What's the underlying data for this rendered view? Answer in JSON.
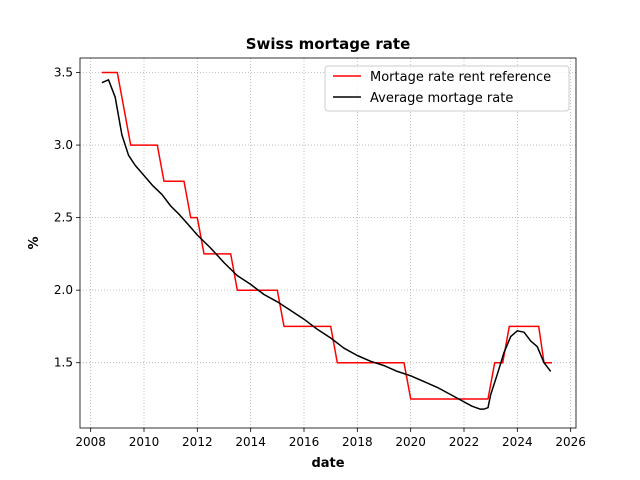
{
  "chart_data": {
    "type": "line",
    "title": "Swiss mortage rate",
    "xlabel": "date",
    "ylabel": "%",
    "xlim": [
      2007.6,
      2026.2
    ],
    "ylim": [
      1.05,
      3.6
    ],
    "x_ticks": [
      2008,
      2010,
      2012,
      2014,
      2016,
      2018,
      2020,
      2022,
      2024,
      2026
    ],
    "x_tick_labels": [
      "2008",
      "2010",
      "2012",
      "2014",
      "2016",
      "2018",
      "2020",
      "2022",
      "2024",
      "2026"
    ],
    "y_ticks": [
      1.5,
      2.0,
      2.5,
      3.0,
      3.5
    ],
    "y_tick_labels": [
      "1.5",
      "2.0",
      "2.5",
      "3.0",
      "3.5"
    ],
    "grid": true,
    "legend_position": "top-right",
    "series": [
      {
        "name": "Mortage rate rent reference",
        "color": "#ff0000",
        "x": [
          2008.42,
          2009.0,
          2009.5,
          2010.5,
          2010.75,
          2011.5,
          2011.75,
          2012.0,
          2012.25,
          2013.25,
          2013.5,
          2015.0,
          2015.25,
          2017.0,
          2017.25,
          2019.75,
          2020.0,
          2022.9,
          2023.15,
          2023.45,
          2023.7,
          2024.8,
          2025.0,
          2025.3
        ],
        "y": [
          3.5,
          3.5,
          3.0,
          3.0,
          2.75,
          2.75,
          2.5,
          2.5,
          2.25,
          2.25,
          2.0,
          2.0,
          1.75,
          1.75,
          1.5,
          1.5,
          1.25,
          1.25,
          1.5,
          1.5,
          1.75,
          1.75,
          1.5,
          1.5
        ]
      },
      {
        "name": "Average mortage rate",
        "color": "#000000",
        "x": [
          2008.42,
          2008.67,
          2008.92,
          2009.17,
          2009.42,
          2009.67,
          2010.0,
          2010.33,
          2010.67,
          2011.0,
          2011.33,
          2011.67,
          2012.0,
          2012.5,
          2013.0,
          2013.5,
          2014.0,
          2014.5,
          2015.0,
          2015.5,
          2016.0,
          2016.5,
          2017.0,
          2017.5,
          2018.0,
          2018.5,
          2019.0,
          2019.5,
          2020.0,
          2020.5,
          2021.0,
          2021.5,
          2022.0,
          2022.3,
          2022.6,
          2022.75,
          2022.9,
          2023.0,
          2023.25,
          2023.5,
          2023.75,
          2024.0,
          2024.25,
          2024.5,
          2024.75,
          2025.0,
          2025.25
        ],
        "y": [
          3.43,
          3.45,
          3.33,
          3.07,
          2.93,
          2.86,
          2.79,
          2.72,
          2.66,
          2.58,
          2.52,
          2.45,
          2.38,
          2.29,
          2.19,
          2.1,
          2.04,
          1.97,
          1.92,
          1.86,
          1.8,
          1.73,
          1.67,
          1.6,
          1.55,
          1.51,
          1.48,
          1.44,
          1.41,
          1.37,
          1.33,
          1.28,
          1.23,
          1.2,
          1.18,
          1.18,
          1.19,
          1.28,
          1.42,
          1.57,
          1.68,
          1.72,
          1.71,
          1.65,
          1.61,
          1.5,
          1.44
        ]
      }
    ]
  }
}
